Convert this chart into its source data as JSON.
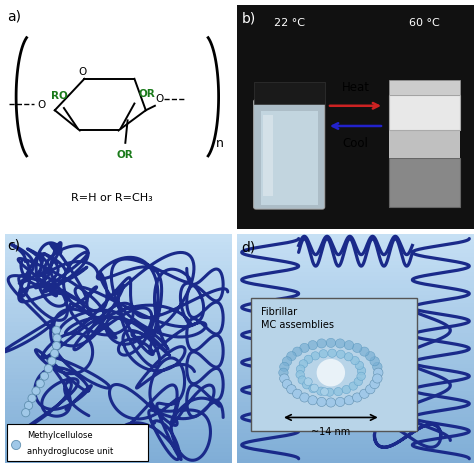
{
  "fig_width": 4.74,
  "fig_height": 4.68,
  "dpi": 100,
  "bg_color": "#ffffff",
  "panel_a": {
    "label": "a)",
    "sugar_color": "#000000",
    "R_color": "#1a7a1a",
    "formula_text": "R=H or R=CH₃",
    "n_label": "n"
  },
  "panel_b": {
    "label": "b)",
    "bg_color": "#111111",
    "temp1": "22 °C",
    "temp2": "60 °C",
    "heat_text": "Heat",
    "cool_text": "Cool",
    "arrow_right_color": "#cc0000",
    "arrow_left_color": "#0000cc"
  },
  "panel_c": {
    "label": "c)",
    "bg_color_light": "#c8e0f0",
    "bg_color_dark": "#6090b8",
    "chain_color": "#1a2a8a",
    "bead_color": "#a0c8e8",
    "bead_edge": "#6090b0"
  },
  "panel_d": {
    "label": "d)",
    "bg_color_light": "#c8e0f0",
    "bg_color_dark": "#6090b8",
    "chain_color": "#1a2a8a",
    "bead_color": "#a0c8e8",
    "bead_edge": "#6090b0",
    "fibril_text": "Fibrillar\nMC assemblies",
    "size_text": "~14 nm"
  }
}
